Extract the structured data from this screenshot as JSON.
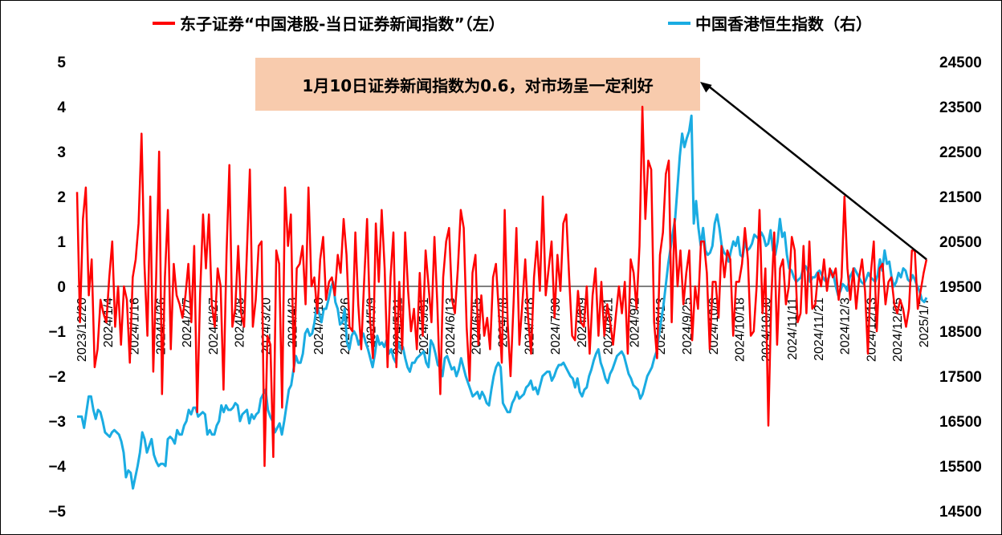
{
  "legend": {
    "left_label": "东子证券“中国港股-当日证券新闻指数”（左）",
    "right_label": "中国香港恒生指数（右）"
  },
  "annotation": "1月10日证券新闻指数为0.6，对市场呈一定利好",
  "colors": {
    "left_series": "#FF0000",
    "right_series": "#1AACE2",
    "annotation_bg": "#F8CBAD"
  },
  "chart_data": {
    "type": "line",
    "x_tick_labels": [
      "2023/12/20",
      "2024/1/4",
      "2024/1/16",
      "2024/1/26",
      "2024/2/7",
      "2024/2/27",
      "2024/3/8",
      "2024/3/20",
      "2024/4/3",
      "2024/4/16",
      "2024/4/26",
      "2024/5/9",
      "2024/5/21",
      "2024/5/31",
      "2024/6/13",
      "2024/6/25",
      "2024/7/8",
      "2024/7/18",
      "2024/7/30",
      "2024/8/9",
      "2024/8/21",
      "2024/9/2",
      "2024/9/13",
      "2024/9/25",
      "2024/10/8",
      "2024/10/18",
      "2024/10/30",
      "2024/11/11",
      "2024/11/21",
      "2024/12/3",
      "2024/12/13",
      "2024/12/25",
      "2025/1/7"
    ],
    "y_left": {
      "ylim": [
        -5,
        5
      ],
      "ticks": [
        5,
        4,
        3,
        2,
        1,
        0,
        -1,
        -2,
        -3,
        -4,
        -5
      ]
    },
    "y_right": {
      "ylim": [
        14500,
        24500
      ],
      "ticks": [
        24500,
        23500,
        22500,
        21500,
        20500,
        19500,
        18500,
        17500,
        16500,
        15500,
        14500
      ]
    },
    "series": [
      {
        "axis": "left",
        "values": [
          2.1,
          -0.8,
          1.5,
          2.2,
          -0.2,
          0.6,
          -1.8,
          -1.4,
          -0.3,
          -0.6,
          -0.8,
          0.2,
          1.0,
          -0.9,
          0.0,
          -1.3,
          0.0,
          -0.3,
          -1.7,
          0.2,
          0.6,
          1.4,
          3.4,
          0.5,
          -1.1,
          2.0,
          -1.9,
          0.2,
          3.0,
          -2.4,
          0.2,
          1.7,
          -1.4,
          0.5,
          -0.2,
          -0.4,
          -0.7,
          -0.2,
          0.5,
          -0.8,
          0.9,
          -2.8,
          -0.2,
          1.6,
          0.4,
          1.6,
          -0.4,
          -0.9,
          0.4,
          0.0,
          -2.3,
          0.7,
          2.7,
          -0.9,
          -0.5,
          0.9,
          -0.6,
          -0.9,
          0.8,
          2.6,
          -0.9,
          -0.3,
          0.9,
          1.0,
          -4.0,
          -1.1,
          -1.3,
          -3.8,
          0.8,
          0.5,
          -2.7,
          2.2,
          0.9,
          1.6,
          -1.9,
          0.4,
          0.5,
          0.9,
          -0.4,
          2.2,
          0.0,
          0.2,
          -0.6,
          0.6,
          1.1,
          -0.3,
          0.1,
          0.2,
          -0.2,
          0.7,
          0.3,
          1.5,
          0.7,
          -0.9,
          -1.0,
          1.2,
          -0.4,
          -1.4,
          0.1,
          1.5,
          -0.7,
          -1.6,
          1.4,
          0.1,
          1.7,
          0.4,
          -1.8,
          0.2,
          1.2,
          -1.8,
          0.1,
          -1.4,
          1.2,
          -0.1,
          -1.0,
          -0.5,
          -1.4,
          0.3,
          -1.1,
          0.8,
          0.0,
          -0.8,
          1.1,
          -0.4,
          -2.4,
          0.2,
          1.0,
          1.3,
          -0.3,
          -0.6,
          0.4,
          1.7,
          1.3,
          -0.9,
          -2.1,
          0.3,
          0.7,
          -1.3,
          -0.2,
          -1.1,
          -0.7,
          -1.4,
          0.2,
          0.5,
          -0.6,
          -1.7,
          1.7,
          -0.8,
          -2.0,
          -0.4,
          1.3,
          -1.3,
          -0.4,
          0.6,
          -0.7,
          -1.5,
          0.2,
          1.0,
          -0.1,
          2.0,
          -0.2,
          0.4,
          1.0,
          -0.7,
          0.7,
          -0.1,
          1.4,
          1.6,
          0.2,
          -1.1,
          -1.2,
          -0.1,
          -0.8,
          -0.9,
          0.0,
          -1.5,
          -0.2,
          0.4,
          -1.1,
          0.1,
          -1.1,
          -0.4,
          -0.8,
          -1.3,
          -0.6,
          0.0,
          -0.6,
          0.1,
          -1.5,
          0.6,
          0.3,
          -0.5,
          0.9,
          4.0,
          1.5,
          2.8,
          2.6,
          -0.8,
          -1.6,
          0.7,
          1.2,
          2.5,
          2.8,
          -0.8,
          1.5,
          0.0,
          0.8,
          -0.4,
          0.3,
          0.8,
          -1.2,
          0.0,
          -0.5,
          1.0,
          1.0,
          0.3,
          -1.4,
          0.1,
          0.1,
          -0.7,
          0.9,
          0.2,
          0.8,
          0.6,
          -1.1,
          0.1,
          0.1,
          0.5,
          1.3,
          0.6,
          -1.1,
          -1.0,
          0.0,
          1.7,
          -0.6,
          0.4,
          -3.1,
          -0.3,
          1.2,
          -1.3,
          0.4,
          0.6,
          -0.4,
          0.0,
          1.1,
          0.8,
          -0.8,
          -0.6,
          0.9,
          -0.6,
          1.0,
          -0.5,
          -0.4,
          0.3,
          0.0,
          0.6,
          -0.1,
          0.4,
          0.2,
          0.4,
          -0.3,
          0.2,
          2.0,
          0.4,
          -0.3,
          0.4,
          -0.5,
          0.2,
          0.6,
          -0.1,
          -1.5,
          0.3,
          1.0,
          -1.0,
          0.4,
          0.5,
          -0.4,
          0.1,
          0.2,
          -0.4,
          -0.6,
          -0.3,
          -0.5,
          -0.9,
          -0.5,
          0.8,
          0.8,
          -0.5,
          -0.1,
          0.3,
          0.6
        ]
      },
      {
        "axis": "right",
        "values": [
          16600,
          16600,
          16600,
          16350,
          16700,
          17050,
          17050,
          16750,
          16550,
          16750,
          16700,
          16500,
          16250,
          16200,
          16150,
          16250,
          16300,
          16250,
          16200,
          16050,
          15800,
          15250,
          15400,
          15350,
          15000,
          15250,
          15500,
          15800,
          16250,
          16100,
          15800,
          15950,
          16100,
          15750,
          15600,
          15500,
          15550,
          15550,
          15500,
          16100,
          16150,
          16100,
          16000,
          16300,
          16200,
          16200,
          16400,
          16500,
          16750,
          16650,
          16800,
          16800,
          16600,
          16650,
          16700,
          16650,
          16200,
          16300,
          16200,
          16200,
          16400,
          16500,
          16850,
          16700,
          16850,
          16750,
          16750,
          16800,
          16900,
          16850,
          16500,
          16650,
          16700,
          16750,
          16450,
          16650,
          16550,
          16650,
          16700,
          17000,
          17100,
          17200,
          16750,
          16600,
          16500,
          16250,
          16350,
          16450,
          16200,
          16500,
          16850,
          17200,
          17300,
          17650,
          17950,
          17800,
          17800,
          18000,
          18450,
          18550,
          18400,
          18450,
          18700,
          19100,
          18900,
          18700,
          19000,
          19000,
          19200,
          19450,
          19600,
          19150,
          19000,
          18650,
          18700,
          19000,
          18250,
          18100,
          18400,
          18500,
          18400,
          18200,
          18350,
          18450,
          18250,
          18100,
          17900,
          17700,
          18000,
          18400,
          18200,
          18250,
          18150,
          18300,
          18000,
          18100,
          17900,
          17800,
          18250,
          18100,
          18150,
          17900,
          17700,
          17600,
          17800,
          17800,
          17900,
          17950,
          18000,
          18050,
          17800,
          17700,
          18300,
          18200,
          18000,
          17750,
          17700,
          17500,
          17900,
          17950,
          17800,
          17650,
          17700,
          17500,
          17650,
          17900,
          17700,
          17500,
          17350,
          17200,
          17050,
          17100,
          17150,
          17000,
          17150,
          17050,
          16900,
          16850,
          17200,
          17500,
          17700,
          17800,
          17700,
          16900,
          16800,
          16700,
          16700,
          16900,
          17000,
          17150,
          17000,
          17050,
          17100,
          17250,
          17300,
          17400,
          17200,
          17250,
          17100,
          17300,
          17500,
          17550,
          17600,
          17600,
          17400,
          17500,
          17650,
          17750,
          17750,
          17800,
          17700,
          17600,
          17500,
          17450,
          17250,
          17450,
          17150,
          17050,
          17200,
          17250,
          17500,
          17650,
          17850,
          18000,
          18100,
          17800,
          17650,
          17450,
          17350,
          17550,
          17650,
          17800,
          17950,
          18000,
          18050,
          17950,
          17750,
          17550,
          17450,
          17300,
          17250,
          17200,
          17000,
          17100,
          17300,
          17500,
          17600,
          17700,
          17900,
          18050,
          18400,
          18750,
          19100,
          19550,
          20000,
          20350,
          20700,
          21000,
          21700,
          22400,
          22900,
          22600,
          22800,
          22950,
          23300,
          20900,
          21400,
          20800,
          20400,
          20800,
          20300,
          20200,
          20250,
          20400,
          20900,
          21100,
          20800,
          20400,
          20250,
          20200,
          20050,
          20300,
          20500,
          20400,
          20600,
          20200,
          20150,
          20500,
          20300,
          20350,
          20450,
          20650,
          20600,
          20550,
          20700,
          20600,
          20400,
          20450,
          20750,
          20300,
          20200,
          20500,
          21000,
          20600,
          20700,
          20200,
          19900,
          19850,
          19700,
          19600,
          19650,
          19700,
          19900,
          19950,
          19850,
          19600,
          19700,
          19700,
          19800,
          19850,
          19750,
          19650,
          19600,
          19700,
          19850,
          19750,
          19500,
          19300,
          19400,
          19550,
          19500,
          19400,
          19700,
          19800,
          19900,
          19800,
          19700,
          19600,
          19550,
          19650,
          19800,
          19700,
          19650,
          19600,
          19750,
          20100,
          19850,
          20300,
          20000,
          20050,
          19700,
          19500,
          19600,
          19800,
          19700,
          19900,
          19850,
          19650,
          19600,
          19750,
          19650,
          19500,
          19400,
          19200,
          19150,
          19250
        ]
      }
    ]
  }
}
